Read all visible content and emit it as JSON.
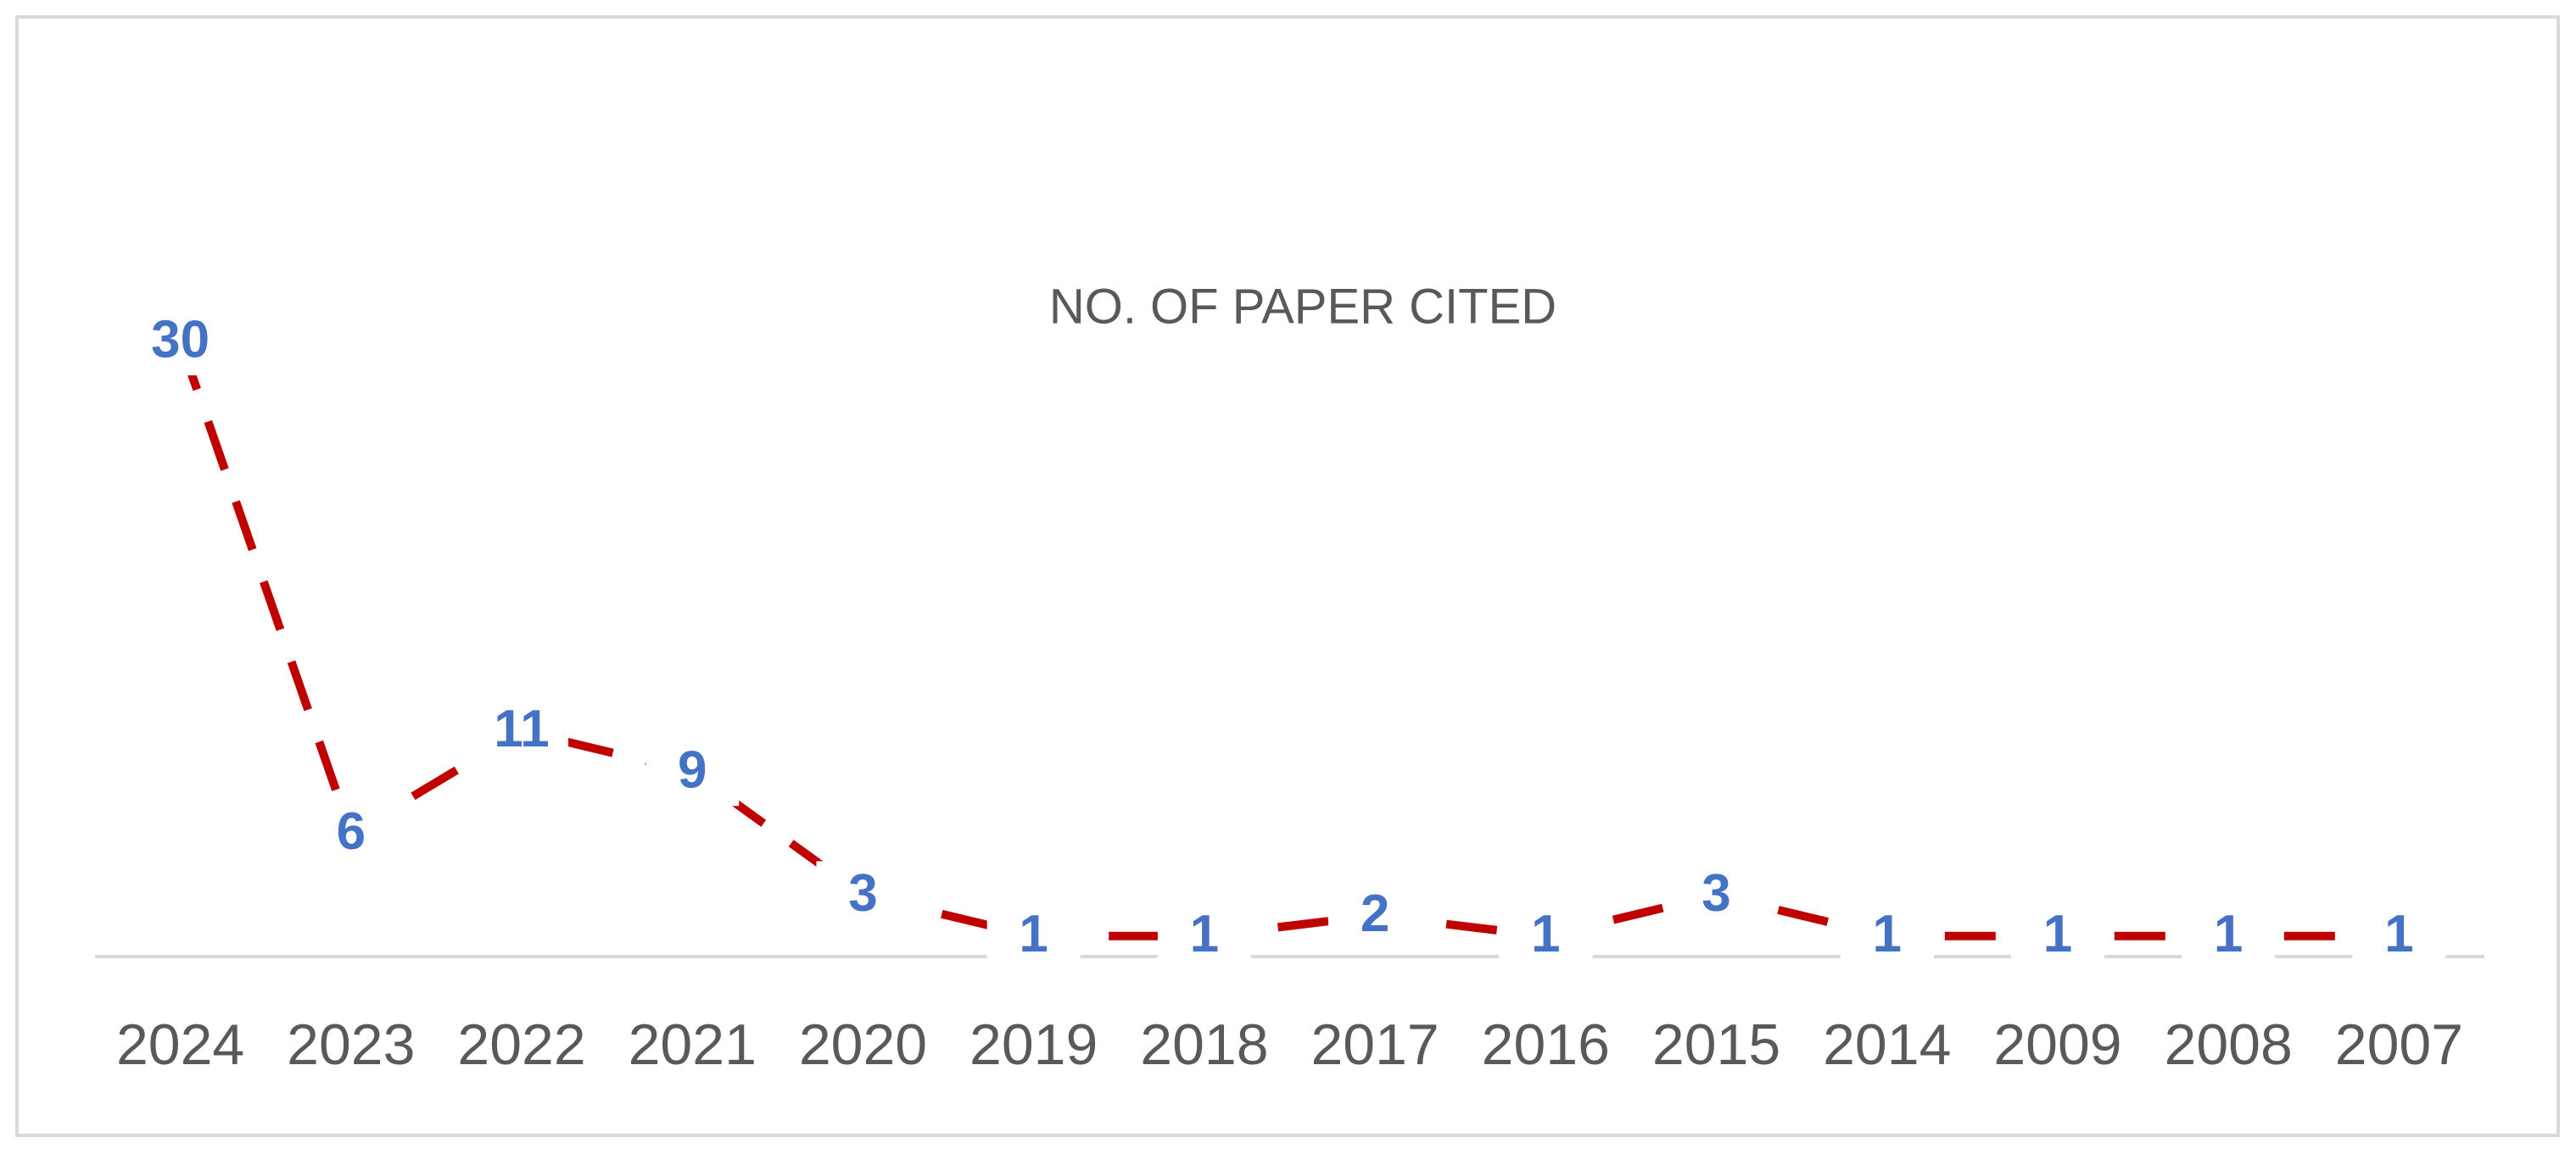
{
  "chart_data": {
    "type": "line",
    "title": "NO. OF PAPER CITED",
    "categories": [
      "2024",
      "2023",
      "2022",
      "2021",
      "2020",
      "2019",
      "2018",
      "2017",
      "2016",
      "2015",
      "2014",
      "2009",
      "2008",
      "2007"
    ],
    "series": [
      {
        "color": "#c00000",
        "values": [
          30,
          6,
          11,
          9,
          3,
          1,
          1,
          2,
          1,
          3,
          1,
          1,
          1,
          1
        ]
      }
    ],
    "label_color": "#4472c4",
    "ylim": [
      0,
      35
    ]
  }
}
